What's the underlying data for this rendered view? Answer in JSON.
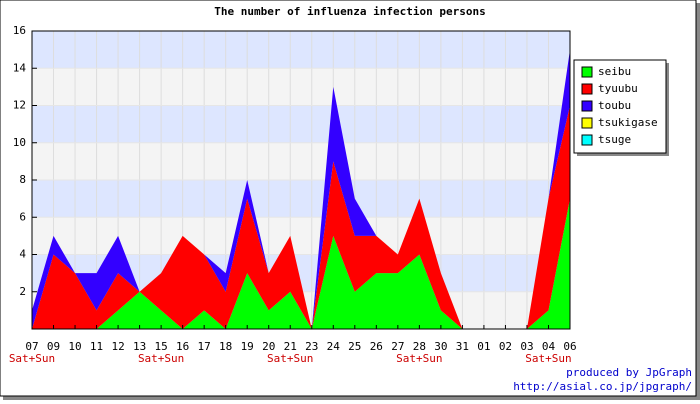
{
  "chart_data": {
    "type": "stacked_area",
    "title": "The number of influenza infection persons",
    "categories": [
      "07",
      "09",
      "10",
      "11",
      "12",
      "13",
      "15",
      "16",
      "17",
      "18",
      "19",
      "20",
      "21",
      "23",
      "24",
      "25",
      "26",
      "27",
      "28",
      "30",
      "31",
      "01",
      "02",
      "03",
      "04",
      "06"
    ],
    "sublabels": [
      "Sat+Sun",
      null,
      null,
      null,
      null,
      null,
      "Sat+Sun",
      null,
      null,
      null,
      null,
      null,
      "Sat+Sun",
      null,
      null,
      null,
      null,
      null,
      "Sat+Sun",
      null,
      null,
      null,
      null,
      null,
      "Sat+Sun",
      null
    ],
    "series": [
      {
        "name": "seibu",
        "color": "#00ff00",
        "values": [
          0,
          0,
          0,
          0,
          1,
          2,
          1,
          0,
          1,
          0,
          3,
          1,
          2,
          0,
          5,
          2,
          3,
          3,
          4,
          1,
          0,
          0,
          0,
          0,
          1,
          7
        ]
      },
      {
        "name": "tyuubu",
        "color": "#ff0000",
        "values": [
          0,
          4,
          3,
          1,
          2,
          0,
          2,
          5,
          3,
          2,
          4,
          2,
          3,
          0,
          4,
          3,
          2,
          1,
          3,
          2,
          0,
          0,
          0,
          0,
          6,
          5
        ]
      },
      {
        "name": "toubu",
        "color": "#3300ff",
        "values": [
          1,
          1,
          0,
          2,
          2,
          0,
          0,
          0,
          0,
          1,
          1,
          0,
          0,
          0,
          4,
          2,
          0,
          0,
          0,
          0,
          0,
          0,
          0,
          0,
          0,
          3
        ]
      },
      {
        "name": "tsukigase",
        "color": "#ffff00",
        "values": [
          0,
          0,
          0,
          0,
          0,
          0,
          0,
          0,
          0,
          0,
          0,
          0,
          0,
          0,
          0,
          0,
          0,
          0,
          0,
          0,
          0,
          0,
          0,
          0,
          0,
          0
        ]
      },
      {
        "name": "tsuge",
        "color": "#00ffff",
        "values": [
          0,
          0,
          0,
          0,
          0,
          0,
          0,
          0,
          0,
          0,
          0,
          0,
          0,
          0,
          0,
          0,
          0,
          0,
          0,
          0,
          0,
          0,
          0,
          0,
          0,
          0
        ]
      }
    ],
    "ylim": [
      0,
      16
    ],
    "yticks": [
      2,
      4,
      6,
      8,
      10,
      12,
      14,
      16
    ],
    "footer": [
      "produced by JpGraph",
      "http://asial.co.jp/jpgraph/"
    ]
  }
}
